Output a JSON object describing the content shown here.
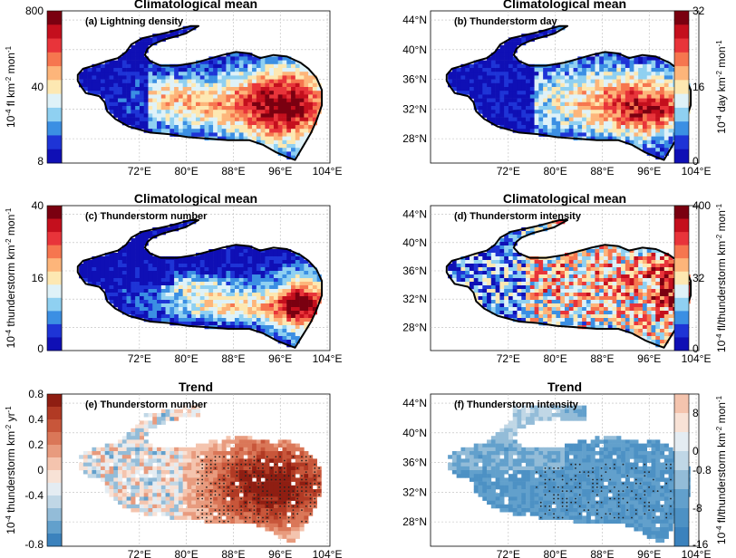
{
  "panels": [
    {
      "id": "a",
      "title": "Climatological mean",
      "label": "(a) Lightning density",
      "kind": "clim-a",
      "colorbar": {
        "side": "left",
        "label_parts": [
          "10",
          "-4",
          " fl km",
          "-2",
          " mon",
          "-1"
        ],
        "ticks": [
          {
            "value": "800",
            "pos": 0.0
          },
          {
            "value": "40",
            "pos": 0.5
          },
          {
            "value": "8",
            "pos": 1.0
          }
        ],
        "colors": [
          "#7a0010",
          "#c40f1d",
          "#e8343a",
          "#f6764f",
          "#fdb57a",
          "#fde8b2",
          "#dff2f8",
          "#8fd0f1",
          "#3b8fe3",
          "#1e34d6",
          "#0f0fb5"
        ]
      },
      "x_ticks": [
        "72°E",
        "80°E",
        "88°E",
        "96°E",
        "104°E"
      ],
      "y_ticks": []
    },
    {
      "id": "b",
      "title": "Climatological mean",
      "label": "(b) Thunderstorm day",
      "kind": "clim-b",
      "colorbar": {
        "side": "right",
        "label_parts": [
          "10",
          "-4",
          " day km",
          "-2",
          " mon",
          "-1"
        ],
        "ticks": [
          {
            "value": "32",
            "pos": 0.0
          },
          {
            "value": "16",
            "pos": 0.5
          },
          {
            "value": "0",
            "pos": 1.0
          }
        ],
        "colors": [
          "#7a0010",
          "#c40f1d",
          "#e8343a",
          "#f6764f",
          "#fdb57a",
          "#fde8b2",
          "#dff2f8",
          "#8fd0f1",
          "#3b8fe3",
          "#1e34d6",
          "#0f0fb5"
        ]
      },
      "x_ticks": [
        "72°E",
        "80°E",
        "88°E",
        "96°E",
        "104°E"
      ],
      "y_ticks": [
        "44°N",
        "40°N",
        "36°N",
        "32°N",
        "28°N"
      ]
    },
    {
      "id": "c",
      "title": "Climatological mean",
      "label": "(c) Thunderstorm number",
      "kind": "clim-c",
      "colorbar": {
        "side": "left",
        "label_parts": [
          "10",
          "-4",
          " thunderstorm km",
          "-2",
          " mon",
          "-1"
        ],
        "ticks": [
          {
            "value": "40",
            "pos": 0.0
          },
          {
            "value": "16",
            "pos": 0.5
          },
          {
            "value": "0",
            "pos": 1.0
          }
        ],
        "colors": [
          "#7a0010",
          "#c40f1d",
          "#e8343a",
          "#f6764f",
          "#fdb57a",
          "#fde8b2",
          "#dff2f8",
          "#8fd0f1",
          "#3b8fe3",
          "#1e34d6",
          "#0f0fb5"
        ]
      },
      "x_ticks": [
        "72°E",
        "80°E",
        "88°E",
        "96°E",
        "104°E"
      ],
      "y_ticks": []
    },
    {
      "id": "d",
      "title": "Climatological mean",
      "label": "(d) Thunderstorm intensity",
      "kind": "clim-d",
      "colorbar": {
        "side": "right",
        "label_parts": [
          "10",
          "-4",
          " fl/thunderstorm km",
          "-2",
          " mon",
          "-1"
        ],
        "ticks": [
          {
            "value": "400",
            "pos": 0.0
          },
          {
            "value": "32",
            "pos": 0.5
          },
          {
            "value": "0",
            "pos": 1.0
          }
        ],
        "colors": [
          "#7a0010",
          "#c40f1d",
          "#e8343a",
          "#f6764f",
          "#fdb57a",
          "#fde8b2",
          "#dff2f8",
          "#8fd0f1",
          "#3b8fe3",
          "#1e34d6",
          "#0f0fb5"
        ]
      },
      "x_ticks": [
        "72°E",
        "80°E",
        "88°E",
        "96°E",
        "104°E"
      ],
      "y_ticks": [
        "44°N",
        "40°N",
        "36°N",
        "32°N",
        "28°N"
      ]
    },
    {
      "id": "e",
      "title": "Trend",
      "label": "(e) Thunderstorm number",
      "kind": "trend-e",
      "colorbar": {
        "side": "left",
        "label_parts": [
          "10",
          "-4",
          " thunderstorm km",
          "-2",
          " yr",
          "-1"
        ],
        "ticks": [
          {
            "value": "0.8",
            "pos": 0.0
          },
          {
            "value": "0.4",
            "pos": 0.1667
          },
          {
            "value": "0.2",
            "pos": 0.3333
          },
          {
            "value": "0",
            "pos": 0.5
          },
          {
            "value": "-0.4",
            "pos": 0.6667
          },
          {
            "value": "-0.8",
            "pos": 1.0
          }
        ],
        "colors": [
          "#8f1e12",
          "#b13a24",
          "#c8563a",
          "#da7758",
          "#e89b7e",
          "#f4c4ae",
          "#f8e2d6",
          "#e4ecf2",
          "#c0d7e6",
          "#93bcd8",
          "#62a0cc",
          "#3b82bd"
        ]
      },
      "x_ticks": [
        "72°E",
        "80°E",
        "88°E",
        "96°E",
        "104°E"
      ],
      "y_ticks": []
    },
    {
      "id": "f",
      "title": "Trend",
      "label": "(f) Thunderstorm intensity",
      "kind": "trend-f",
      "colorbar": {
        "side": "right",
        "label_parts": [
          "10",
          "-4",
          " fl/thunderstorm km",
          "-2",
          " mon",
          "-1"
        ],
        "ticks": [
          {
            "value": "8",
            "pos": 0.125
          },
          {
            "value": "0",
            "pos": 0.375
          },
          {
            "value": "-0.8",
            "pos": 0.5
          },
          {
            "value": "-8",
            "pos": 0.75
          },
          {
            "value": "-16",
            "pos": 1.0
          }
        ],
        "colors": [
          "#f4c4ae",
          "#f8e2d6",
          "#e4ecf2",
          "#c0d7e6",
          "#93bcd8",
          "#62a0cc",
          "#4d91c4",
          "#3b82bd"
        ]
      },
      "x_ticks": [
        "72°E",
        "80°E",
        "88°E",
        "96°E",
        "104°E"
      ],
      "y_ticks": [
        "44°N",
        "40°N",
        "36°N",
        "32°N",
        "28°N"
      ]
    }
  ]
}
